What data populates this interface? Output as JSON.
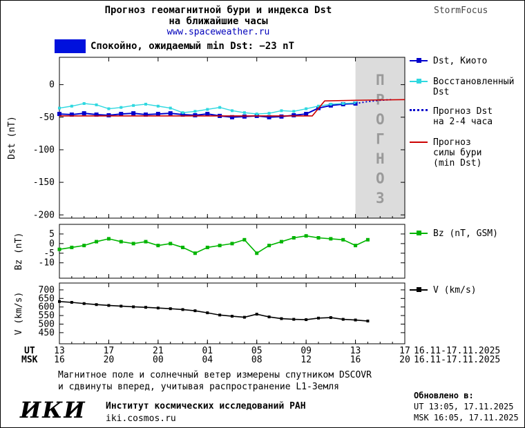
{
  "header": {
    "title_line1": "Прогноз геомагнитной бури и индекса Dst",
    "title_line2": "на ближайшие часы",
    "site": "www.spaceweather.ru",
    "brand": "StormFocus"
  },
  "status": {
    "label": "Спокойно, ожидаемый min Dst: −23 nT"
  },
  "colors": {
    "dst": "#0000cc",
    "recon": "#2fd8e0",
    "forecast_dst": "#0000cc",
    "storm": "#cc0000",
    "bz": "#00b400",
    "v": "#000000",
    "quiet": "#0011dd",
    "band": "#dcdcdc",
    "band_text": "#9a9a9a"
  },
  "legend": {
    "dst_kyoto": "Dst, Киото",
    "recon_line1": "Восстановленный",
    "recon_line2": "Dst",
    "forecast_line1": "Прогноз Dst",
    "forecast_line2": "на 2-4 часа",
    "storm_line1": "Прогноз",
    "storm_line2": "силы бури",
    "storm_line3": "(min Dst)",
    "bz": "Bz (nT, GSM)",
    "v": "V (km/s)"
  },
  "chart_data": {
    "type": "line",
    "title": "Прогноз геомагнитной бури и индекса Dst на ближайшие часы",
    "xaxis": {
      "xlim": [
        0,
        28
      ],
      "tick_positions": [
        0,
        4,
        8,
        12,
        16,
        20,
        24,
        28
      ],
      "ut_prefix": "UT",
      "msk_prefix": "MSK",
      "ut_labels": [
        "13",
        "17",
        "21",
        "01",
        "05",
        "09",
        "13",
        "17"
      ],
      "msk_labels": [
        "16",
        "20",
        "00",
        "04",
        "08",
        "12",
        "16",
        "20"
      ],
      "ut_date": "16.11-17.11.2025",
      "msk_date": "16.11-17.11.2025"
    },
    "panels": [
      {
        "name": "dst",
        "ylabel": "Dst (nT)",
        "ylim": [
          -205,
          42
        ],
        "yticks": [
          0,
          -50,
          -100,
          -150,
          -200
        ],
        "forecast_band": {
          "x_start": 24,
          "x_end": 28,
          "label": "ПРОГНОЗ"
        },
        "series": [
          {
            "name": "Dst, Киото",
            "color": "#0000cc",
            "width": 2,
            "marker": true,
            "marker_size": 6,
            "x_start": 0,
            "x_step": 1,
            "values": [
              -45,
              -46,
              -44,
              -46,
              -47,
              -45,
              -44,
              -46,
              -45,
              -44,
              -46,
              -47,
              -45,
              -48,
              -50,
              -49,
              -48,
              -50,
              -49,
              -47,
              -45,
              -36,
              -32,
              -30,
              -29
            ]
          },
          {
            "name": "Восстановленный Dst",
            "color": "#2fd8e0",
            "width": 1.4,
            "marker": true,
            "marker_size": 4,
            "x_start": 0,
            "x_step": 1,
            "values": [
              -36,
              -33,
              -29,
              -31,
              -37,
              -35,
              -32,
              -30,
              -33,
              -36,
              -43,
              -41,
              -38,
              -35,
              -40,
              -43,
              -45,
              -44,
              -40,
              -41,
              -37,
              -33,
              -30,
              -29,
              -28
            ]
          },
          {
            "name": "Прогноз Dst на 2-4 часа",
            "color": "#0000cc",
            "width": 2,
            "dash": true,
            "x": [
              24,
              25,
              26,
              27
            ],
            "values": [
              -29,
              -26,
              -24,
              -23
            ]
          },
          {
            "name": "Прогноз силы бури (min Dst)",
            "color": "#cc0000",
            "width": 1.6,
            "x": [
              0,
              20.5,
              21.5,
              24,
              28
            ],
            "values": [
              -48,
              -48,
              -25,
              -24,
              -23
            ]
          }
        ]
      },
      {
        "name": "bz",
        "ylabel": "Bz (nT)",
        "ylim": [
          -18,
          10
        ],
        "yticks": [
          5,
          0,
          -5,
          -10
        ],
        "series": [
          {
            "name": "Bz (nT, GSM)",
            "color": "#00b400",
            "width": 1.6,
            "marker": true,
            "marker_size": 5,
            "x_start": 0,
            "x_step": 1,
            "values": [
              -3,
              -2,
              -1,
              1,
              2.5,
              1,
              0,
              1,
              -1,
              0,
              -2,
              -5,
              -2,
              -1,
              0,
              2,
              -5,
              -1,
              1,
              3,
              4,
              3,
              2.5,
              2,
              -1,
              2
            ]
          }
        ]
      },
      {
        "name": "v",
        "ylabel": "V (km/s)",
        "ylim": [
          385,
          740
        ],
        "yticks": [
          700,
          650,
          600,
          550,
          500,
          450
        ],
        "series": [
          {
            "name": "V (km/s)",
            "color": "#000000",
            "width": 1.6,
            "marker": true,
            "marker_size": 4,
            "x_start": 0,
            "x_step": 1,
            "values": [
              632,
              627,
              620,
              614,
              609,
              605,
              601,
              598,
              594,
              590,
              585,
              578,
              566,
              553,
              546,
              540,
              558,
              542,
              532,
              528,
              526,
              535,
              538,
              528,
              524,
              518
            ]
          }
        ]
      }
    ]
  },
  "footer": {
    "note_line1": "Магнитное поле и солнечный ветер измерены спутником DSCOVR",
    "note_line2": "и сдвинуты вперед, учитывая распространение L1-Земля",
    "logo": "ИКИ",
    "institute": "Институт космических исследований РАН",
    "site": "iki.cosmos.ru",
    "updated_label": "Обновлено в:",
    "updated_ut": "UT  13:05, 17.11.2025",
    "updated_msk": "MSK 16:05, 17.11.2025"
  }
}
